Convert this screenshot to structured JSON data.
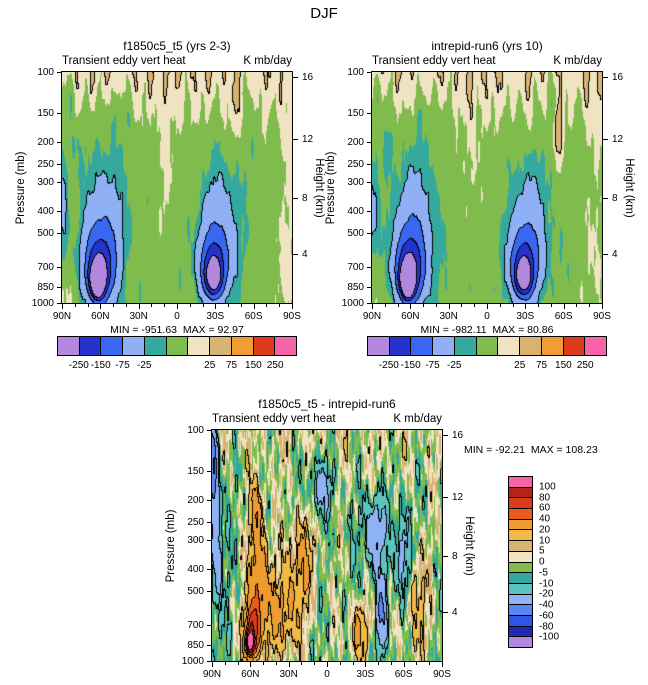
{
  "figure": {
    "title": "DJF"
  },
  "chart_data": {
    "type": "heatmap",
    "description": "Pressure-latitude filled contour plots of DJF transient eddy vertical heat flux for two model runs and their difference",
    "axes": {
      "pressure_label": "Pressure (mb)",
      "height_label": "Height (km)",
      "pressure_ticks": [
        100,
        150,
        200,
        250,
        300,
        400,
        500,
        700,
        850,
        1000
      ],
      "height_ticks": [
        {
          "value": 16,
          "frac": 0.02
        },
        {
          "value": 12,
          "frac": 0.29
        },
        {
          "value": 8,
          "frac": 0.545
        },
        {
          "value": 4,
          "frac": 0.79
        }
      ],
      "lat_ticks": [
        "90N",
        "60N",
        "30N",
        "0",
        "30S",
        "60S",
        "90S"
      ]
    },
    "colorbars": {
      "top": {
        "levels": [
          -250,
          -150,
          -75,
          -25,
          -10,
          10,
          25,
          75,
          150,
          250
        ],
        "labels": [
          -250,
          -150,
          -75,
          -25,
          25,
          75,
          150,
          250
        ],
        "colors": [
          "#B288DE",
          "#2532CB",
          "#3A67F2",
          "#8FB0F4",
          "#35A99E",
          "#7FBC4D",
          "#EFE3C2",
          "#D8B271",
          "#F09D33",
          "#DC3C1B",
          "#F763A8"
        ]
      },
      "diff": {
        "levels": [
          -100,
          -80,
          -60,
          -40,
          -20,
          -10,
          -5,
          0,
          5,
          10,
          20,
          40,
          60,
          80,
          100
        ],
        "labels": [
          -100,
          -80,
          -60,
          -40,
          -20,
          -10,
          -5,
          0,
          5,
          10,
          20,
          40,
          60,
          80,
          100
        ],
        "colors": [
          "#B288DE",
          "#2028B8",
          "#2F55E8",
          "#5B86F2",
          "#8FB2F5",
          "#5BC4BE",
          "#2FA89D",
          "#7FBC4D",
          "#EFE3C2",
          "#D8B271",
          "#F0BA45",
          "#F09B2F",
          "#EA5C1D",
          "#DC3A18",
          "#B2241A",
          "#F763A8"
        ]
      }
    },
    "panels": [
      {
        "title": "f1850c5_t5 (yrs 2-3)",
        "field_name": "Transient eddy vert heat",
        "units": "K mb/day",
        "min": -951.63,
        "max": 92.97,
        "min_label": "MIN = -951.63  MAX = 92.97",
        "colorbar": "top",
        "colorbar_pos": "bottom",
        "base": -4,
        "seed": 0.4,
        "line_min": 25,
        "top_band": {
          "amp": 26,
          "t0": -0.05,
          "wt": 0.3
        },
        "noise": [
          5,
          3.5,
          2,
          7
        ],
        "features": [
          {
            "a": -600,
            "lat": 62,
            "t": 0.9,
            "wlat": 4.5,
            "wt": 0.055
          },
          {
            "a": -350,
            "lat": 62,
            "t": 0.93,
            "wlat": 3,
            "wt": 0.04
          },
          {
            "a": -200,
            "lat": 61,
            "t": 0.87,
            "wlat": 8,
            "wt": 0.1
          },
          {
            "a": -90,
            "lat": 60,
            "t": 0.83,
            "wlat": 11,
            "wt": 0.15
          },
          {
            "a": -50,
            "lat": 58,
            "t": 0.77,
            "wlat": 13,
            "wt": 0.21
          },
          {
            "a": -26,
            "lat": 56,
            "t": 0.6,
            "wlat": 14,
            "wt": 0.3
          },
          {
            "a": -300,
            "lat": -29,
            "t": 0.89,
            "wlat": 5,
            "wt": 0.06
          },
          {
            "a": -150,
            "lat": -29,
            "t": 0.86,
            "wlat": 8,
            "wt": 0.1
          },
          {
            "a": -70,
            "lat": -30,
            "t": 0.82,
            "wlat": 11,
            "wt": 0.14
          },
          {
            "a": -40,
            "lat": -32,
            "t": 0.75,
            "wlat": 13,
            "wt": 0.2
          },
          {
            "a": -22,
            "lat": -34,
            "t": 0.6,
            "wlat": 13,
            "wt": 0.28
          },
          {
            "a": 18,
            "lat": 90,
            "t": 1.02,
            "wlat": 10,
            "wt": 0.18
          },
          {
            "a": 16,
            "lat": -84,
            "t": 0.85,
            "wlat": 12,
            "wt": 0.35
          },
          {
            "a": 10,
            "lat": -88,
            "t": 0.35,
            "wlat": 7,
            "wt": 0.35
          },
          {
            "a": 14,
            "lat": 10,
            "t": 0.48,
            "wlat": 9,
            "wt": 0.35
          },
          {
            "a": -28,
            "lat": 89,
            "t": 0.6,
            "wlat": 3.5,
            "wt": 0.22
          },
          {
            "a": -16,
            "lat": 85,
            "t": 0.1,
            "wlat": 6,
            "wt": 0.1
          },
          {
            "a": -14,
            "lat": 78,
            "t": 0.3,
            "wlat": 7,
            "wt": 0.13
          },
          {
            "a": -12,
            "lat": 45,
            "t": 0.18,
            "wlat": 12,
            "wt": 0.13
          },
          {
            "a": -13,
            "lat": -58,
            "t": 0.22,
            "wlat": 5,
            "wt": 0.18
          },
          {
            "a": 11,
            "lat": -45,
            "t": 0.2,
            "wlat": 6,
            "wt": 0.12
          }
        ]
      },
      {
        "title": "intrepid-run6 (yrs 10)",
        "field_name": "Transient eddy vert heat",
        "units": "K mb/day",
        "min": -982.11,
        "max": 80.86,
        "min_label": "MIN = -982.11  MAX = 80.86",
        "colorbar": "top",
        "colorbar_pos": "bottom",
        "base": -4,
        "seed": 1.9,
        "line_min": 25,
        "top_band": {
          "amp": 26,
          "t0": -0.05,
          "wt": 0.3
        },
        "noise": [
          5,
          3.5,
          2,
          7
        ],
        "features": [
          {
            "a": -620,
            "lat": 62,
            "t": 0.9,
            "wlat": 4.5,
            "wt": 0.055
          },
          {
            "a": -360,
            "lat": 62,
            "t": 0.93,
            "wlat": 3,
            "wt": 0.04
          },
          {
            "a": -200,
            "lat": 61,
            "t": 0.87,
            "wlat": 8,
            "wt": 0.1
          },
          {
            "a": -90,
            "lat": 60,
            "t": 0.83,
            "wlat": 11,
            "wt": 0.15
          },
          {
            "a": -50,
            "lat": 58,
            "t": 0.77,
            "wlat": 13,
            "wt": 0.21
          },
          {
            "a": -26,
            "lat": 56,
            "t": 0.6,
            "wlat": 14,
            "wt": 0.3
          },
          {
            "a": -310,
            "lat": -29,
            "t": 0.89,
            "wlat": 5,
            "wt": 0.06
          },
          {
            "a": -150,
            "lat": -29,
            "t": 0.86,
            "wlat": 8,
            "wt": 0.1
          },
          {
            "a": -70,
            "lat": -30,
            "t": 0.82,
            "wlat": 11,
            "wt": 0.14
          },
          {
            "a": -40,
            "lat": -32,
            "t": 0.75,
            "wlat": 13,
            "wt": 0.2
          },
          {
            "a": -22,
            "lat": -34,
            "t": 0.6,
            "wlat": 13,
            "wt": 0.28
          },
          {
            "a": 18,
            "lat": 90,
            "t": 1.02,
            "wlat": 10,
            "wt": 0.18
          },
          {
            "a": 16,
            "lat": -84,
            "t": 0.85,
            "wlat": 12,
            "wt": 0.35
          },
          {
            "a": 10,
            "lat": -88,
            "t": 0.35,
            "wlat": 7,
            "wt": 0.35
          },
          {
            "a": 14,
            "lat": 10,
            "t": 0.48,
            "wlat": 9,
            "wt": 0.35
          },
          {
            "a": -28,
            "lat": 89,
            "t": 0.6,
            "wlat": 3.5,
            "wt": 0.22
          },
          {
            "a": -16,
            "lat": 85,
            "t": 0.1,
            "wlat": 6,
            "wt": 0.1
          },
          {
            "a": -14,
            "lat": 78,
            "t": 0.3,
            "wlat": 7,
            "wt": 0.13
          },
          {
            "a": -12,
            "lat": 45,
            "t": 0.18,
            "wlat": 12,
            "wt": 0.13
          },
          {
            "a": 36,
            "lat": -57,
            "t": 0.25,
            "wlat": 3.5,
            "wt": 0.16
          },
          {
            "a": -20,
            "lat": -53,
            "t": 0.12,
            "wlat": 6,
            "wt": 0.1
          }
        ]
      },
      {
        "title": "f1850c5_t5 - intrepid-run6",
        "field_name": "Transient eddy vert heat",
        "units": "K mb/day",
        "min": -92.21,
        "max": 108.23,
        "min_label": "MIN = -92.21  MAX = 108.23",
        "colorbar": "diff",
        "colorbar_pos": "right",
        "base": -3,
        "seed": 2.6,
        "line_min": 10,
        "top_band": {
          "amp": 4,
          "t0": 0,
          "wt": 0.25
        },
        "noise": [
          8,
          6,
          4,
          0
        ],
        "features": [
          {
            "a": 105,
            "lat": 60,
            "t": 0.93,
            "wlat": 4,
            "wt": 0.06
          },
          {
            "a": 60,
            "lat": 58,
            "t": 0.85,
            "wlat": 6,
            "wt": 0.1
          },
          {
            "a": 40,
            "lat": 54,
            "t": 0.65,
            "wlat": 7,
            "wt": 0.22
          },
          {
            "a": 28,
            "lat": 35,
            "t": 0.8,
            "wlat": 14,
            "wt": 0.18
          },
          {
            "a": 22,
            "lat": 20,
            "t": 0.55,
            "wlat": 12,
            "wt": 0.2
          },
          {
            "a": 30,
            "lat": 55,
            "t": 0.35,
            "wlat": 5,
            "wt": 0.12
          },
          {
            "a": 25,
            "lat": -25,
            "t": 0.88,
            "wlat": 8,
            "wt": 0.12
          },
          {
            "a": -60,
            "lat": 89,
            "t": 0.15,
            "wlat": 3,
            "wt": 0.2
          },
          {
            "a": -30,
            "lat": 86,
            "t": 0.5,
            "wlat": 4,
            "wt": 0.3
          },
          {
            "a": -35,
            "lat": -38,
            "t": 0.45,
            "wlat": 8,
            "wt": 0.15
          },
          {
            "a": -40,
            "lat": -43,
            "t": 0.8,
            "wlat": 4,
            "wt": 0.15
          },
          {
            "a": -28,
            "lat": -60,
            "t": 0.55,
            "wlat": 6,
            "wt": 0.2
          },
          {
            "a": -22,
            "lat": 5,
            "t": 0.25,
            "wlat": 10,
            "wt": 0.12
          },
          {
            "a": 20,
            "lat": -70,
            "t": 0.75,
            "wlat": 8,
            "wt": 0.25
          }
        ]
      }
    ]
  }
}
